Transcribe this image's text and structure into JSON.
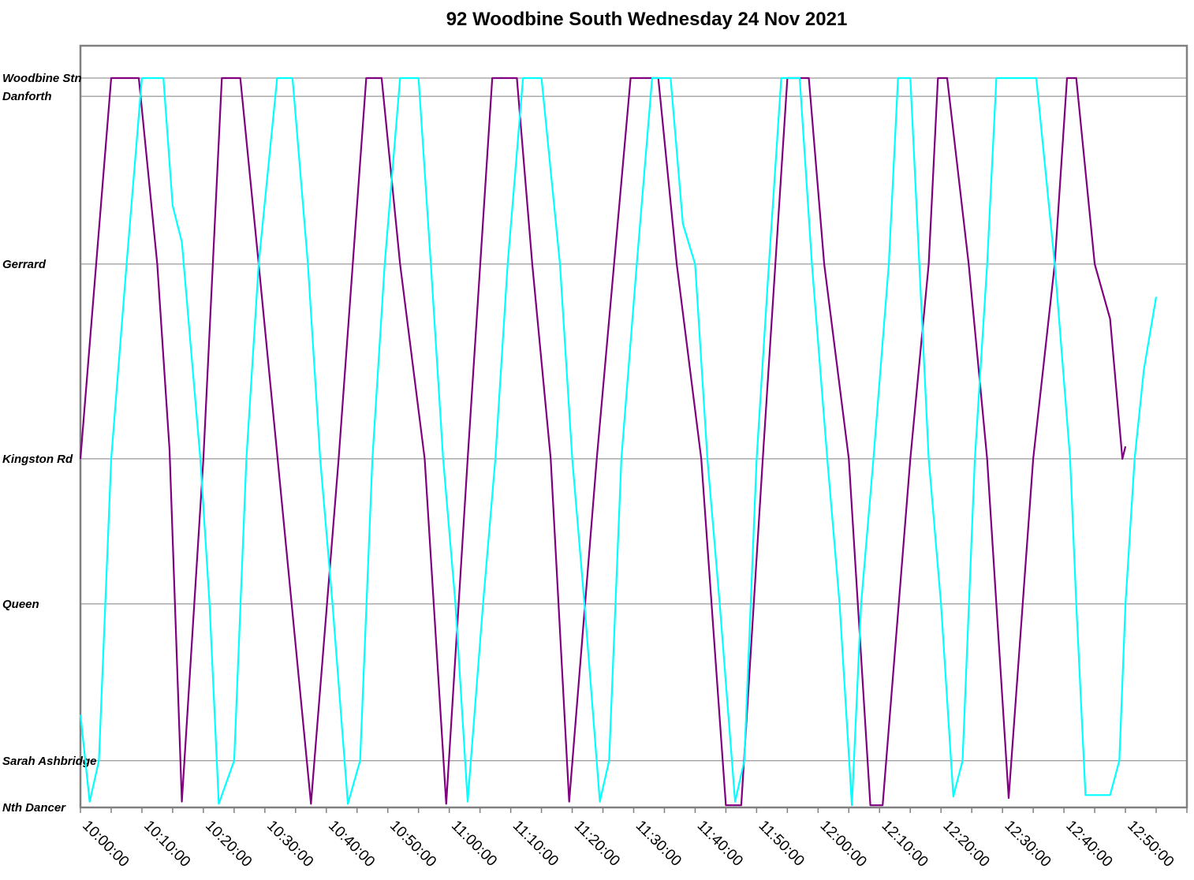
{
  "chart_data": {
    "type": "line",
    "title": "92 Woodbine South Wednesday 24 Nov 2021",
    "x_range": [
      "09:59:00",
      "12:59:00"
    ],
    "x_ticks": [
      "10:00:00",
      "10:10:00",
      "10:20:00",
      "10:30:00",
      "10:40:00",
      "10:50:00",
      "11:00:00",
      "11:10:00",
      "11:20:00",
      "11:30:00",
      "11:40:00",
      "11:50:00",
      "12:00:00",
      "12:10:00",
      "12:20:00",
      "12:30:00",
      "12:40:00",
      "12:50:00"
    ],
    "stops": [
      {
        "name": "Woodbine Stn",
        "pos": 100
      },
      {
        "name": "Danforth",
        "pos": 97.5
      },
      {
        "name": "Gerrard",
        "pos": 74.5
      },
      {
        "name": "Kingston Rd",
        "pos": 47.8
      },
      {
        "name": "Queen",
        "pos": 27.9
      },
      {
        "name": "Sarah Ashbridge",
        "pos": 6.4
      },
      {
        "name": "Nth Dancer",
        "pos": 0
      }
    ],
    "y_range": [
      0,
      100
    ],
    "grid": true,
    "legend": "none",
    "series": [
      {
        "color": "#800080",
        "points": [
          [
            "09:59:00",
            47.8
          ],
          [
            "10:04:00",
            100
          ],
          [
            "10:08:30",
            100
          ],
          [
            "10:11:30",
            74.5
          ],
          [
            "10:13:30",
            49
          ],
          [
            "10:15:30",
            0.8
          ],
          [
            "10:19:00",
            47.8
          ],
          [
            "10:22:00",
            100
          ],
          [
            "10:25:00",
            100
          ],
          [
            "10:28:00",
            74.5
          ],
          [
            "10:31:00",
            48.5
          ],
          [
            "10:36:30",
            0.5
          ],
          [
            "10:41:00",
            47.8
          ],
          [
            "10:45:30",
            100
          ],
          [
            "10:48:00",
            100
          ],
          [
            "10:51:00",
            74.5
          ],
          [
            "10:55:00",
            47.8
          ],
          [
            "10:58:30",
            0.5
          ],
          [
            "11:02:00",
            47.8
          ],
          [
            "11:06:00",
            100
          ],
          [
            "11:10:00",
            100
          ],
          [
            "11:12:30",
            74.5
          ],
          [
            "11:15:30",
            47.8
          ],
          [
            "11:18:30",
            0.8
          ],
          [
            "11:23:00",
            47.8
          ],
          [
            "11:28:30",
            100
          ],
          [
            "11:33:00",
            100
          ],
          [
            "11:36:00",
            74.5
          ],
          [
            "11:40:00",
            47.8
          ],
          [
            "11:44:00",
            0.3
          ],
          [
            "11:46:30",
            0.3
          ],
          [
            "11:50:00",
            47.8
          ],
          [
            "11:54:00",
            100
          ],
          [
            "11:57:30",
            100
          ],
          [
            "12:00:00",
            74.5
          ],
          [
            "12:04:00",
            47.8
          ],
          [
            "12:07:30",
            0.3
          ],
          [
            "12:09:30",
            0.3
          ],
          [
            "12:14:00",
            47.8
          ],
          [
            "12:17:00",
            74.5
          ],
          [
            "12:18:30",
            100
          ],
          [
            "12:20:00",
            100
          ],
          [
            "12:23:30",
            74.5
          ],
          [
            "12:26:30",
            47.8
          ],
          [
            "12:30:00",
            1.3
          ],
          [
            "12:34:00",
            47.8
          ],
          [
            "12:37:30",
            74.5
          ],
          [
            "12:39:30",
            100
          ],
          [
            "12:41:00",
            100
          ],
          [
            "12:44:00",
            74.5
          ],
          [
            "12:46:30",
            67
          ],
          [
            "12:48:30",
            47.8
          ],
          [
            "12:49:00",
            49.5
          ]
        ]
      },
      {
        "color": "#00FFFF",
        "points": [
          [
            "09:59:00",
            12.7
          ],
          [
            "10:00:30",
            0.8
          ],
          [
            "10:02:00",
            6.4
          ],
          [
            "10:04:00",
            47.8
          ],
          [
            "10:06:30",
            74.5
          ],
          [
            "10:09:00",
            100
          ],
          [
            "10:12:30",
            100
          ],
          [
            "10:14:00",
            82.5
          ],
          [
            "10:15:30",
            77.5
          ],
          [
            "10:18:30",
            47.8
          ],
          [
            "10:20:00",
            27.9
          ],
          [
            "10:21:30",
            0.5
          ],
          [
            "10:24:00",
            6.4
          ],
          [
            "10:26:00",
            47.8
          ],
          [
            "10:28:00",
            74.5
          ],
          [
            "10:31:00",
            100
          ],
          [
            "10:33:30",
            100
          ],
          [
            "10:36:00",
            74.5
          ],
          [
            "10:38:00",
            47.8
          ],
          [
            "10:40:00",
            27.9
          ],
          [
            "10:42:30",
            0.5
          ],
          [
            "10:44:30",
            6.4
          ],
          [
            "10:46:30",
            47.8
          ],
          [
            "10:48:30",
            74.5
          ],
          [
            "10:51:00",
            100
          ],
          [
            "10:54:00",
            100
          ],
          [
            "10:56:00",
            74.5
          ],
          [
            "10:58:00",
            47.8
          ],
          [
            "11:00:00",
            27.9
          ],
          [
            "11:02:00",
            0.8
          ],
          [
            "11:04:30",
            27.9
          ],
          [
            "11:06:30",
            47.8
          ],
          [
            "11:08:30",
            74.5
          ],
          [
            "11:11:00",
            100
          ],
          [
            "11:14:00",
            100
          ],
          [
            "11:17:00",
            74.5
          ],
          [
            "11:19:00",
            47.8
          ],
          [
            "11:21:00",
            27.9
          ],
          [
            "11:23:30",
            0.8
          ],
          [
            "11:25:00",
            6.4
          ],
          [
            "11:27:00",
            47.8
          ],
          [
            "11:29:30",
            74.5
          ],
          [
            "11:32:00",
            100
          ],
          [
            "11:35:00",
            100
          ],
          [
            "11:37:00",
            80
          ],
          [
            "11:39:00",
            74.5
          ],
          [
            "11:41:00",
            47.8
          ],
          [
            "11:43:00",
            27.9
          ],
          [
            "11:45:30",
            0.8
          ],
          [
            "11:47:00",
            6.4
          ],
          [
            "11:49:00",
            47.8
          ],
          [
            "11:51:00",
            74.5
          ],
          [
            "11:53:00",
            100
          ],
          [
            "11:56:00",
            100
          ],
          [
            "11:58:00",
            74.5
          ],
          [
            "12:00:30",
            47.8
          ],
          [
            "12:02:30",
            27.9
          ],
          [
            "12:04:30",
            0.3
          ],
          [
            "12:06:00",
            27.9
          ],
          [
            "12:08:00",
            47.8
          ],
          [
            "12:10:30",
            74.5
          ],
          [
            "12:12:00",
            100
          ],
          [
            "12:14:00",
            100
          ],
          [
            "12:17:00",
            47.8
          ],
          [
            "12:19:00",
            27.9
          ],
          [
            "12:21:00",
            1.5
          ],
          [
            "12:22:30",
            6.4
          ],
          [
            "12:24:30",
            47.8
          ],
          [
            "12:26:30",
            74.5
          ],
          [
            "12:28:00",
            100
          ],
          [
            "12:34:30",
            100
          ],
          [
            "12:37:30",
            74.5
          ],
          [
            "12:40:00",
            47.8
          ],
          [
            "12:41:00",
            27.9
          ],
          [
            "12:42:30",
            1.7
          ],
          [
            "12:46:30",
            1.7
          ],
          [
            "12:48:00",
            6.4
          ],
          [
            "12:49:00",
            27.9
          ],
          [
            "12:50:30",
            47.8
          ],
          [
            "12:52:00",
            60
          ],
          [
            "12:54:00",
            70
          ]
        ]
      }
    ]
  }
}
